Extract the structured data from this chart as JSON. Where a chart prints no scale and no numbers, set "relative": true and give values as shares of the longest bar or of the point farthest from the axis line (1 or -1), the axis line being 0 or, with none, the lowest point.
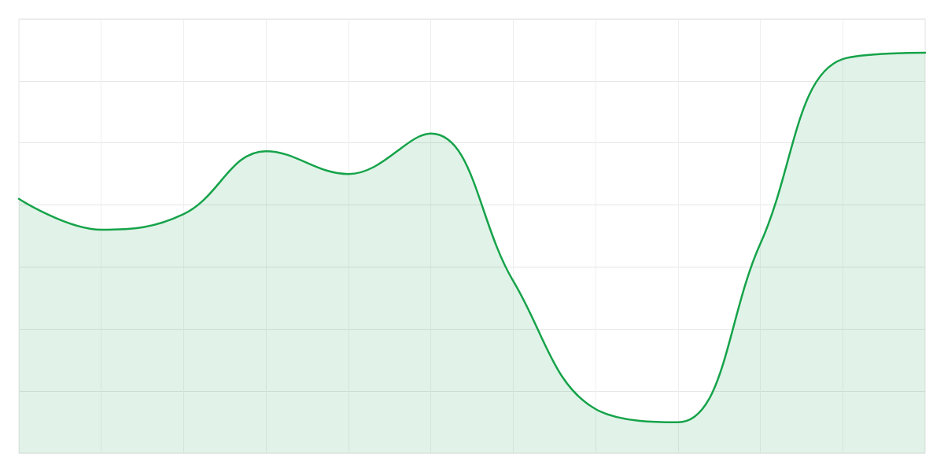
{
  "chart_data": {
    "type": "area",
    "relative": true,
    "categories": [
      null,
      null,
      null,
      null,
      null,
      null,
      null,
      null,
      null,
      null,
      null,
      null
    ],
    "series": [
      {
        "color": "#16a34a",
        "values": [
          0.635,
          0.558,
          0.597,
          0.754,
          0.697,
          0.798,
          0.43,
          0.11,
          0.077,
          0.523,
          0.984,
          1.0
        ]
      }
    ],
    "grid": true,
    "marker": "none"
  }
}
